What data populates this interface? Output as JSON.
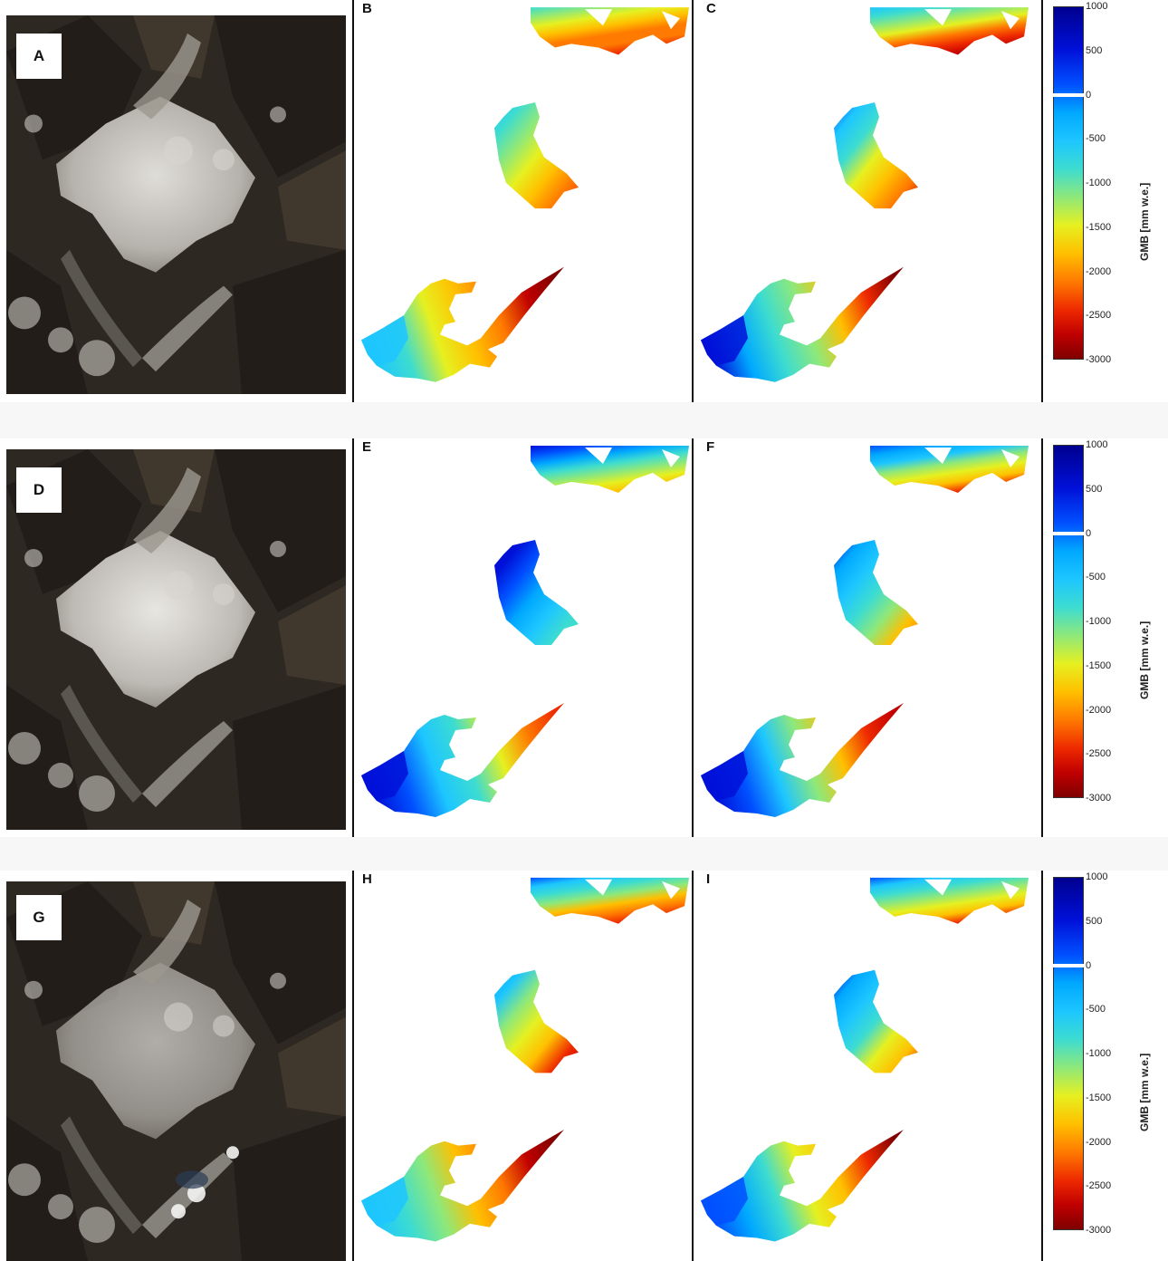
{
  "rows": [
    {
      "sat_label": "A",
      "panel_labels": [
        "B",
        "C"
      ]
    },
    {
      "sat_label": "D",
      "panel_labels": [
        "E",
        "F"
      ]
    },
    {
      "sat_label": "G",
      "panel_labels": [
        "H",
        "I"
      ]
    }
  ],
  "colorbar": {
    "title": "GMB",
    "unit": "[mm w.e.]",
    "ticks": [
      "1000",
      "500",
      "0",
      "-500",
      "-1000",
      "-1500",
      "-2000",
      "-2500",
      "-3000"
    ],
    "range": [
      -3000,
      1000
    ],
    "colormap": "jet",
    "colors": {
      "max": "#00008f",
      "zero": "#ffffff",
      "mid": "#e6f020",
      "min": "#7f0000"
    }
  }
}
